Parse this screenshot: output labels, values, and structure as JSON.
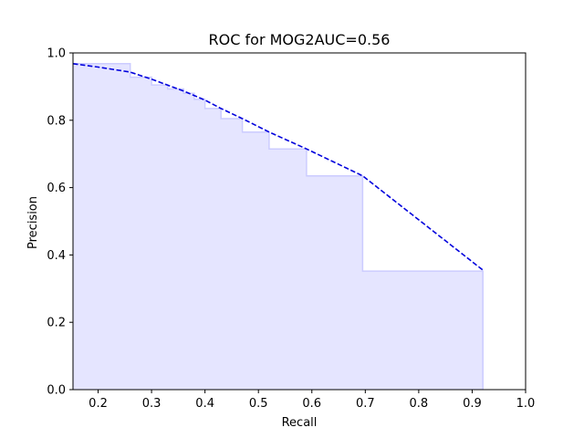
{
  "chart_data": {
    "type": "line",
    "title": "ROC for MOG2AUC=0.56",
    "xlabel": "Recall",
    "ylabel": "Precision",
    "xlim": [
      0.153,
      1.0
    ],
    "ylim": [
      0.0,
      1.0
    ],
    "grid": false,
    "xticks": [
      0.2,
      0.3,
      0.4,
      0.5,
      0.6,
      0.7,
      0.8,
      0.9,
      1.0
    ],
    "xtick_labels": [
      "0.2",
      "0.3",
      "0.4",
      "0.5",
      "0.6",
      "0.7",
      "0.8",
      "0.9",
      "1.0"
    ],
    "yticks": [
      0.0,
      0.2,
      0.4,
      0.6,
      0.8,
      1.0
    ],
    "ytick_labels": [
      "0.0",
      "0.2",
      "0.4",
      "0.6",
      "0.8",
      "1.0"
    ],
    "series": [
      {
        "style": "dashed",
        "color": "#0000dd",
        "x": [
          0.153,
          0.2,
          0.26,
          0.3,
          0.36,
          0.4,
          0.43,
          0.47,
          0.52,
          0.59,
          0.695,
          0.92
        ],
        "y": [
          0.968,
          0.958,
          0.943,
          0.922,
          0.887,
          0.86,
          0.835,
          0.805,
          0.765,
          0.715,
          0.635,
          0.355
        ]
      },
      {
        "style": "step-fill",
        "color": "#ccccff",
        "fill": "#e5e5ff",
        "x": [
          0.153,
          0.26,
          0.3,
          0.33,
          0.36,
          0.38,
          0.4,
          0.43,
          0.47,
          0.52,
          0.59,
          0.695,
          0.92
        ],
        "y": [
          0.968,
          0.928,
          0.905,
          0.893,
          0.88,
          0.862,
          0.835,
          0.805,
          0.765,
          0.715,
          0.635,
          0.352,
          0.352
        ]
      }
    ]
  }
}
